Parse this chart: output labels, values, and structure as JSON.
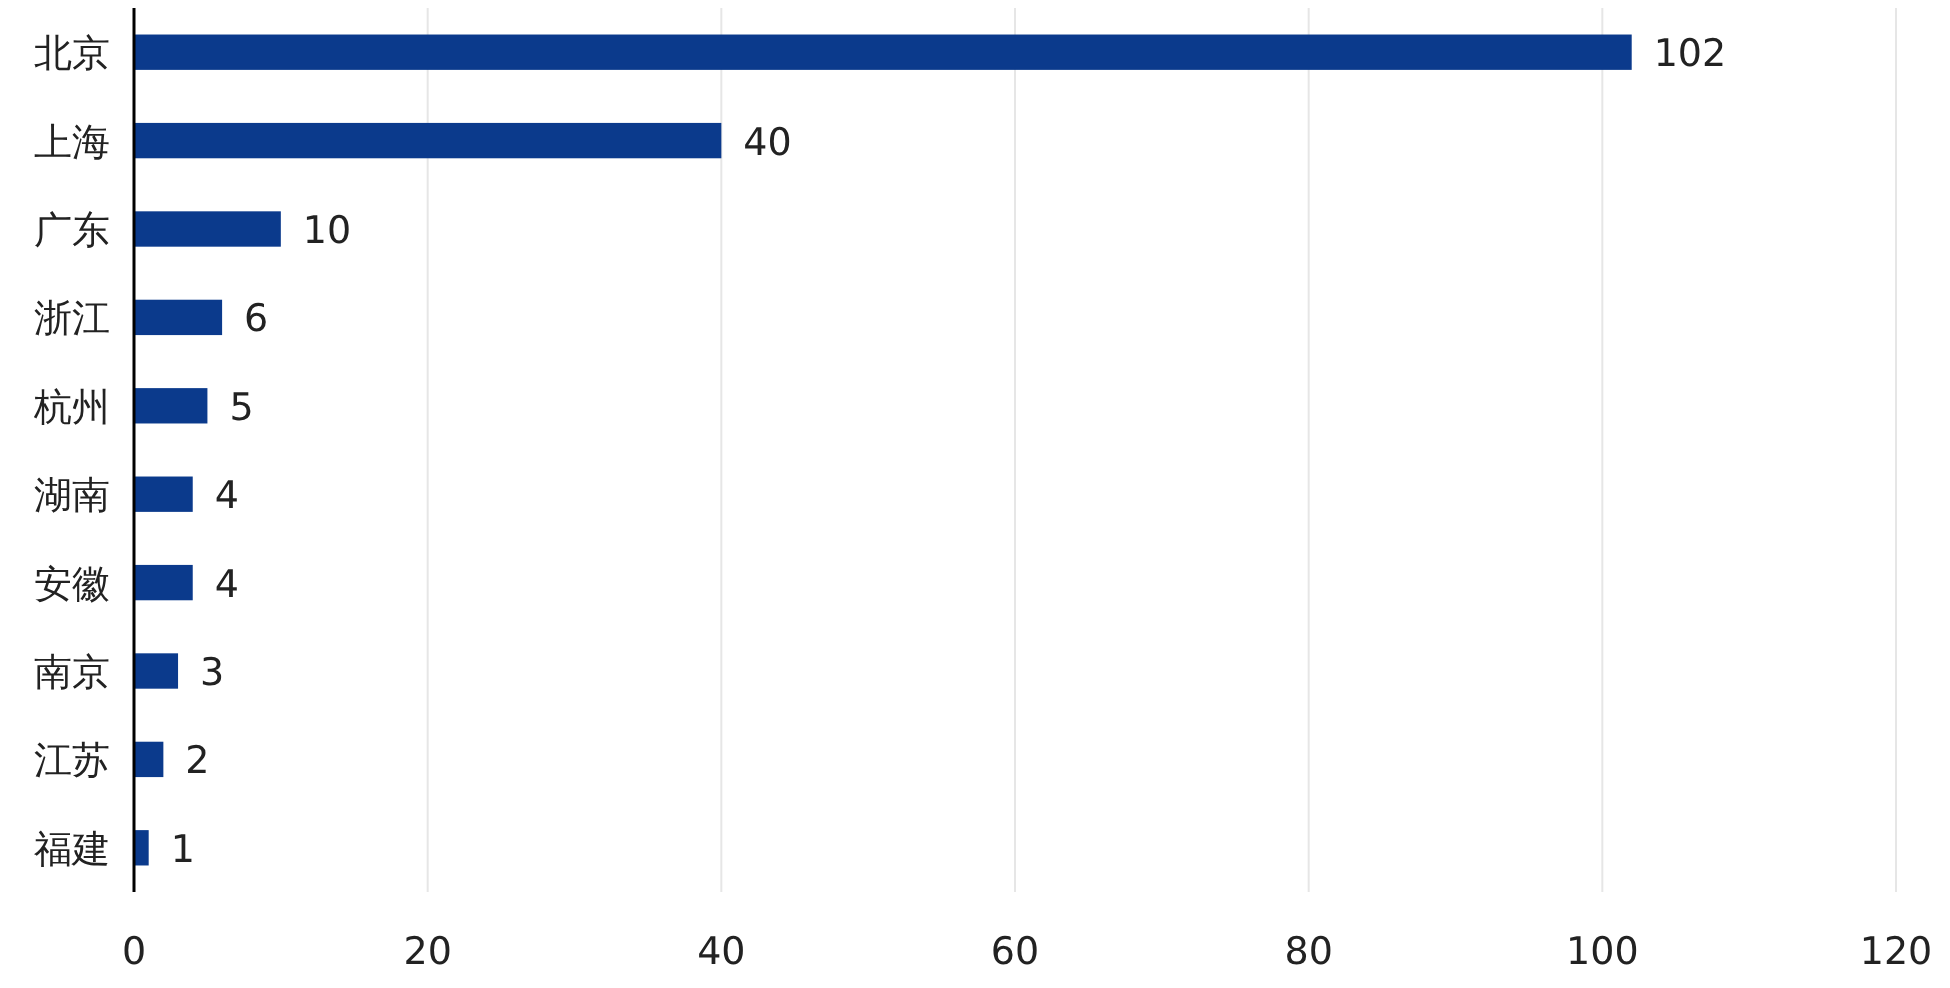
{
  "chart_data": {
    "type": "bar",
    "orientation": "horizontal",
    "categories": [
      "北京",
      "上海",
      "广东",
      "浙江",
      "杭州",
      "湖南",
      "安徽",
      "南京",
      "江苏",
      "福建"
    ],
    "values": [
      102,
      40,
      10,
      6,
      5,
      4,
      4,
      3,
      2,
      1
    ],
    "color": "#0b3a8c",
    "xlim": [
      0,
      120
    ],
    "xticks": [
      0,
      20,
      40,
      60,
      80,
      100,
      120
    ],
    "grid": "x",
    "data_labels": true
  }
}
